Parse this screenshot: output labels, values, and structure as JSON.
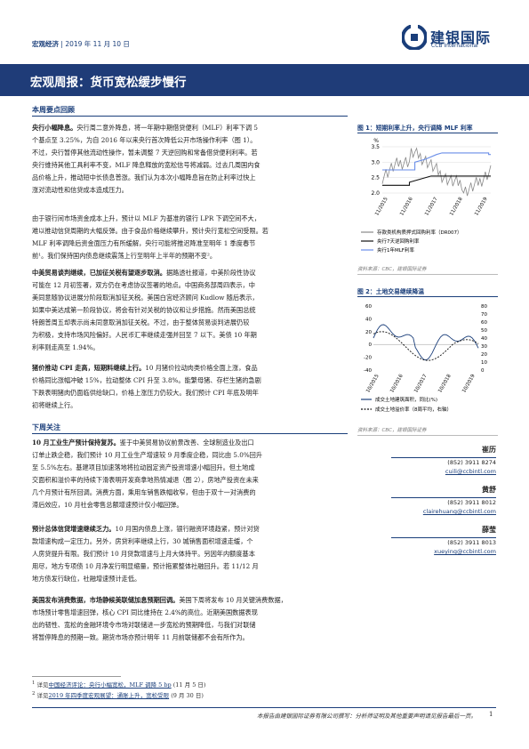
{
  "header": {
    "category": "宏观经济",
    "date": "2019 年 11 月 10 日"
  },
  "brand": {
    "cn": "建银国际",
    "en": "CCB International",
    "color": "#1a3e7a"
  },
  "banner": {
    "title": "宏观周报：货币宽松缓步慢行"
  },
  "sections": {
    "key_points": "本周要点回顾",
    "outlook": "下周关注"
  },
  "paragraphs": [
    {
      "lead": "央行小幅降息。",
      "lines": [
        "央行周二意外降息，将一年期中期借贷便利（MLF）利率下调 5",
        "个基点至 3.25%，为自 2016 年以来央行首次降低公开市场操作利率（图 1）。",
        "不过，央行暂停其他流动性操作，暂未调整 7 天逆回购和常备借贷便利利率。若",
        "央行维持其他工具利率不变，MLF 降息释放的宽松信号将减弱。过去几周国内食",
        "品价格上升，推动短中长债息普涨。我们认为本次小幅降息旨在防止利率过快上",
        "涨对流动性和信贷成本造成压力。"
      ]
    },
    {
      "lead": "",
      "lines": [
        "由于银行间市场资金成本上升，预计以 MLF 为基准的银行 LPR 下调空间不大，",
        "难以推动信贷周期的大幅反弹。由于食品价格继续攀升，预计央行宽松空间受限。若",
        "MLF 利率调降后资金面压力有所缓解，央行可能将推迟降准至明年 1 季度春节",
        "前¹。我们保持国内债息继续震荡上行至明年上半年的预期不变²。"
      ]
    },
    {
      "lead": "中美贸易谈判继续，已加征关税有望逐步取消。",
      "lines": [
        "据路透社报道，中美阶段性协议",
        "可能在 12 月初签署，双方仍在考虑协议签署的地点。中国商务部周四表示，中",
        "美同意随协议进展分阶段取消加征关税。美国白宫经济顾问 Kudlow 随后表示，",
        "如果中美达成第一阶段协议，将会有针对关税的协议和让步措施。然而美国总统",
        "特朗普周五却表示尚未同意取消加征关税。不过，由于整体贸易谈判进展仍较",
        "为积极，支持市场风险偏好。人民币汇率继续走强并回至 7 以下。美债 10 年期",
        "利率则走高至 1.94%。"
      ]
    },
    {
      "lead": "猪价推动 CPI 走高，短期料继续上行。",
      "lines": [
        "10 月猪价拉动肉类价格全面上涨，食品",
        "价格同比涨幅冲破 15%，拉动整体 CPI 升至 3.8%。能繁母猪、存栏生猪的急剧",
        "下跌表明猪肉仍面临供给缺口，价格上涨压力仍较大。我们预计 CPI 年底及明年",
        "初将继续上行。"
      ]
    },
    {
      "lead": "10 月工业生产预计保持复苏。",
      "lines": [
        "鉴于中美贸易协议前景改善、全球制造业及出口",
        "订单止跌企稳，我们预计 10 月工业生产增速较 9 月季度企稳，同比由 5.0%回升",
        "至 5.5%左右。基建项目加速落地将拉动固定资产投资增速小幅回升。但土地成",
        "交面积和溢价率的持续下滑表明开发商拿地热情减退（图 2），房地产投资在未来",
        "几个月预计有所回调。消费方面，乘用车销售跌幅收窄，但由于双十一对消费的",
        "滞后效应，10 月社会零售总额增速预计仅小幅回弹。"
      ]
    },
    {
      "lead": "预计总体信贷增速继续乏力。",
      "lines": [
        "10 月国内债息上涨，银行融资环境趋紧，预计对贷",
        "款增速构成一定压力。另外，房贷利率继续上行，30 城销售面积增速走缓，个",
        "人房贷提升有限。我们预计 10 月贷款增速与上月大体持平。另因年内额度基本",
        "用尽，地方专项债 10 月净发行明显缩量，预计拖累整体社融回升。若 11/12 月",
        "地方债发行缺位，社融增速预计走低。"
      ]
    },
    {
      "lead": "美国发布消费数据，市场静候美联储加息预期回调。",
      "lines": [
        "美国下周将发布 10 月关键消费数据，",
        "市场预计零售增速回弹，核心 CPI 同比维持在 2.4%的高位。近期美国数据表现",
        "出的韧性、宽松的金融环境令市场对联储进一步宽松的预期降低，与我们对联储",
        "将暂停降息的预期一致。期货市场亦预计明年 11 月前联储都不会有所作为。"
      ]
    }
  ],
  "figure1": {
    "title": "图 1：短期利率上升，央行调降 MLF 利率",
    "unit": "%",
    "source": "资料来源：CBC，建银国际证券",
    "y_ticks": [
      "3.5",
      "3.0",
      "2.5",
      "2.0"
    ],
    "x_ticks": [
      "11/2015",
      "11/2016",
      "11/2017",
      "11/2018",
      "11/2019"
    ],
    "legend": [
      "存款类机构质押式回购利率（DR007）",
      "央行7天逆回购利率",
      "央行1年MLF利率"
    ],
    "colors": [
      "#888888",
      "#111111",
      "#6a8ee8"
    ]
  },
  "figure2": {
    "title": "图 2：土地交易继续降温",
    "source": "资料来源：CBC，建银国际证券",
    "y_left_ticks": [
      "60",
      "40",
      "20",
      "0",
      "-20",
      "-40"
    ],
    "y_right_ticks": [
      "80",
      "70",
      "60",
      "50",
      "40",
      "30",
      "20",
      "10",
      "0"
    ],
    "x_ticks": [
      "10/2015",
      "10/2016",
      "10/2017",
      "10/2018",
      "10/2019"
    ],
    "legend": [
      "成交土地建筑面积，同比(%)",
      "成交土地溢价率（8周平均，右轴）"
    ],
    "colors": [
      "#1a3e7a",
      "#111111"
    ]
  },
  "analysts": [
    {
      "name": "崔历",
      "phone": "(852) 3911 8274",
      "email": "cuili@ccbintl.com"
    },
    {
      "name": "黄舒",
      "phone": "(852) 3911 8012",
      "email": "clairehuang@ccbintl.com"
    },
    {
      "name": "薛莹",
      "phone": "(852) 3911 8013",
      "email": "xueying@ccbintl.com"
    }
  ],
  "footnotes": [
    {
      "prefix": "详见",
      "link": "中国经济评论：央行小幅宽松，MLF 调降 5 bp",
      "suffix": "(11 月 5 日)"
    },
    {
      "prefix": "详见",
      "link": "2019 年四季度宏观展望：通胀上升，宽松受限",
      "suffix": "(9 月 30 日)"
    }
  ],
  "footer": {
    "disclaimer": "本报告由建银国际证券有限公司撰写：分析师证明及其他重要声明请见报告最后一页。",
    "page": "1"
  }
}
